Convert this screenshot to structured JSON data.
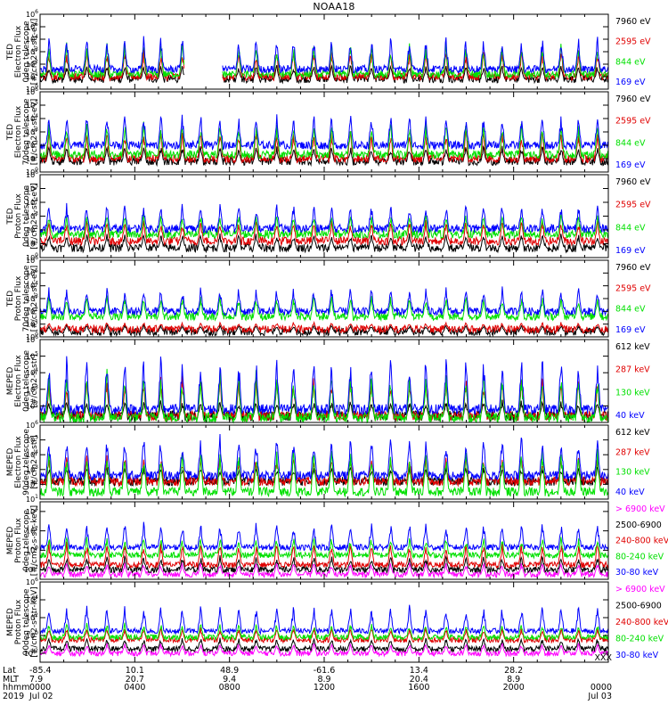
{
  "title": "NOAA18",
  "colors": {
    "black": "#000000",
    "red": "#e00000",
    "green": "#00e000",
    "blue": "#0000ff",
    "magenta": "#ff00ff"
  },
  "chart_data": {
    "type": "line",
    "yscale": "log",
    "x_range_hours": [
      0,
      24
    ],
    "panels": [
      {
        "ylabel": [
          "TED",
          "Electron Flux",
          "0deg telescope",
          "[#/cm2-s-str-eV]"
        ],
        "ylim_exp": [
          0,
          6
        ],
        "ytick_exps": [
          0,
          1,
          2,
          3,
          4,
          5,
          6
        ],
        "series": [
          {
            "name": "7960 eV",
            "color": "black",
            "base_exp": 0.8,
            "spike_exp": 2.0,
            "gap": [
              6.1,
              7.7
            ]
          },
          {
            "name": "2595 eV",
            "color": "red",
            "base_exp": 1.0,
            "spike_exp": 3.3,
            "gap": [
              6.1,
              7.7
            ]
          },
          {
            "name": "844 eV",
            "color": "green",
            "base_exp": 1.2,
            "spike_exp": 3.8,
            "gap": [
              6.1,
              7.7
            ]
          },
          {
            "name": "169 eV",
            "color": "blue",
            "base_exp": 1.6,
            "spike_exp": 4.4,
            "gap": [
              6.1,
              7.7
            ]
          }
        ]
      },
      {
        "ylabel": [
          "TED",
          "Electron Flux",
          "70deg telescope",
          "[#/cm2-s-str-eV]"
        ],
        "ylim_exp": [
          0,
          6
        ],
        "ytick_exps": [
          0,
          1,
          2,
          3,
          4,
          5,
          6
        ],
        "series": [
          {
            "name": "7960 eV",
            "color": "black",
            "base_exp": 0.8,
            "spike_exp": 2.0
          },
          {
            "name": "2595 eV",
            "color": "red",
            "base_exp": 1.0,
            "spike_exp": 3.3
          },
          {
            "name": "844 eV",
            "color": "green",
            "base_exp": 1.3,
            "spike_exp": 3.9
          },
          {
            "name": "169 eV",
            "color": "blue",
            "base_exp": 2.0,
            "spike_exp": 4.5
          }
        ]
      },
      {
        "ylabel": [
          "TED",
          "Proton Flux",
          "0deg telescope",
          "[#/cm2-s-str-eV]"
        ],
        "ylim_exp": [
          0,
          6
        ],
        "ytick_exps": [
          0,
          1,
          2,
          3,
          4,
          5,
          6
        ],
        "series": [
          {
            "name": "7960 eV",
            "color": "black",
            "base_exp": 0.7,
            "spike_exp": 1.8
          },
          {
            "name": "2595 eV",
            "color": "red",
            "base_exp": 1.2,
            "spike_exp": 2.8
          },
          {
            "name": "844 eV",
            "color": "green",
            "base_exp": 1.7,
            "spike_exp": 3.2
          },
          {
            "name": "169 eV",
            "color": "blue",
            "base_exp": 2.1,
            "spike_exp": 4.0
          }
        ]
      },
      {
        "ylabel": [
          "TED",
          "Proton Flux",
          "70deg telescope",
          "[#/cm2-s-str-eV]"
        ],
        "ylim_exp": [
          0,
          6
        ],
        "ytick_exps": [
          0,
          1,
          2,
          3,
          4,
          5,
          6
        ],
        "series": [
          {
            "name": "7960 eV",
            "color": "black",
            "base_exp": 0.4,
            "spike_exp": 1.0
          },
          {
            "name": "2595 eV",
            "color": "red",
            "base_exp": 0.6,
            "spike_exp": 1.2
          },
          {
            "name": "844 eV",
            "color": "green",
            "base_exp": 1.6,
            "spike_exp": 3.3
          },
          {
            "name": "169 eV",
            "color": "blue",
            "base_exp": 2.0,
            "spike_exp": 4.0
          }
        ]
      },
      {
        "ylabel": [
          "MEPED",
          "Electron Flux",
          "0deg telescope",
          "[#/cm2-s-str]"
        ],
        "ylim_exp": [
          1,
          6
        ],
        "ytick_exps": [
          2,
          3,
          4,
          5,
          6
        ],
        "series": [
          {
            "name": "612 keV",
            "color": "black",
            "base_exp": 1.4,
            "spike_exp": 2.4
          },
          {
            "name": "287 keV",
            "color": "red",
            "base_exp": 1.4,
            "spike_exp": 4.0
          },
          {
            "name": "130 keV",
            "color": "green",
            "base_exp": 1.3,
            "spike_exp": 4.3
          },
          {
            "name": "40 keV",
            "color": "blue",
            "base_exp": 1.8,
            "spike_exp": 5.2
          }
        ]
      },
      {
        "ylabel": [
          "MEPED",
          "Electron Flux",
          "90deg telescope",
          "[#/cm2-s-str]"
        ],
        "ylim_exp": [
          1,
          6
        ],
        "ytick_exps": [
          1,
          2,
          3,
          4,
          5,
          6
        ],
        "series": [
          {
            "name": "612 keV",
            "color": "black",
            "base_exp": 2.2,
            "spike_exp": 3.3
          },
          {
            "name": "287 keV",
            "color": "red",
            "base_exp": 2.2,
            "spike_exp": 4.0
          },
          {
            "name": "130 keV",
            "color": "green",
            "base_exp": 1.5,
            "spike_exp": 4.6
          },
          {
            "name": "40 keV",
            "color": "blue",
            "base_exp": 2.6,
            "spike_exp": 5.5
          }
        ]
      },
      {
        "ylabel": [
          "MEPED",
          "Proton Flux",
          "0deg telescope",
          "[#/cm2-s-str-keV]"
        ],
        "ylim_exp": [
          -3,
          5
        ],
        "ytick_exps": [
          -2,
          0,
          2,
          4
        ],
        "series": [
          {
            "name": "> 6900 keV",
            "color": "magenta",
            "base_exp": -2.5,
            "spike_exp": -1.2
          },
          {
            "name": "2500-6900",
            "color": "black",
            "base_exp": -2.0,
            "spike_exp": -0.5
          },
          {
            "name": "240-800 keV",
            "color": "red",
            "base_exp": -1.5,
            "spike_exp": 1.0
          },
          {
            "name": "80-240 keV",
            "color": "green",
            "base_exp": -0.5,
            "spike_exp": 1.5
          },
          {
            "name": "30-80 keV",
            "color": "blue",
            "base_exp": 0.3,
            "spike_exp": 3.0
          }
        ]
      },
      {
        "ylabel": [
          "MEPED",
          "Proton Flux",
          "90deg telescope",
          "[#/cm2-s-str-keV]"
        ],
        "ylim_exp": [
          -3,
          6
        ],
        "ytick_exps": [
          -2,
          0,
          2,
          4,
          6
        ],
        "series": [
          {
            "name": "> 6900 keV",
            "color": "magenta",
            "base_exp": -2.0,
            "spike_exp": -0.8
          },
          {
            "name": "2500-6900",
            "color": "black",
            "base_exp": -1.5,
            "spike_exp": -0.2
          },
          {
            "name": "240-800 keV",
            "color": "red",
            "base_exp": -0.5,
            "spike_exp": 1.0
          },
          {
            "name": "80-240 keV",
            "color": "green",
            "base_exp": -0.2,
            "spike_exp": 1.5
          },
          {
            "name": "30-80 keV",
            "color": "blue",
            "base_exp": 0.5,
            "spike_exp": 3.5
          }
        ]
      }
    ],
    "x_axis": {
      "row_labels": [
        "Lat",
        "MLT",
        "hhmm",
        "2019"
      ],
      "tick_hours": [
        0,
        4,
        8,
        12,
        16,
        20,
        24
      ],
      "columns": [
        {
          "hour": 0,
          "lat": "-85.4",
          "mlt": "7.9",
          "hhmm": "0000",
          "date": "Jul 02"
        },
        {
          "hour": 4,
          "lat": "10.1",
          "mlt": "20.7",
          "hhmm": "0400",
          "date": ""
        },
        {
          "hour": 8,
          "lat": "48.9",
          "mlt": "9.4",
          "hhmm": "0800",
          "date": ""
        },
        {
          "hour": 12,
          "lat": "-61.6",
          "mlt": "8.9",
          "hhmm": "1200",
          "date": ""
        },
        {
          "hour": 16,
          "lat": "13.4",
          "mlt": "20.4",
          "hhmm": "1600",
          "date": ""
        },
        {
          "hour": 20,
          "lat": "28.2",
          "mlt": "8.9",
          "hhmm": "2000",
          "date": ""
        },
        {
          "hour": 24,
          "lat": "",
          "mlt": "",
          "hhmm": "0000",
          "date": "Jul 03"
        }
      ],
      "end_mark": "XXX"
    }
  }
}
